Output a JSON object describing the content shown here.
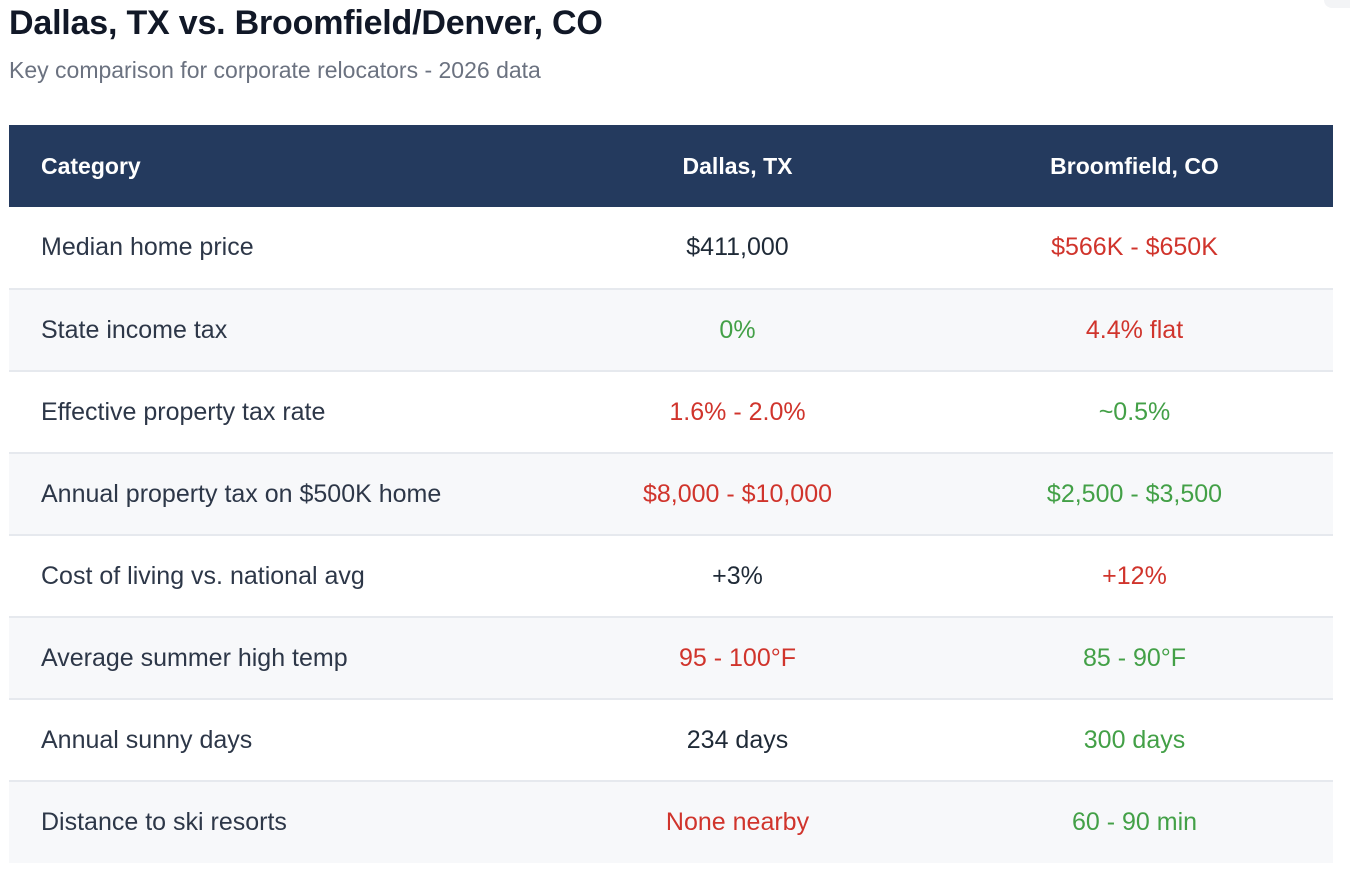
{
  "title": "Dallas, TX vs. Broomfield/Denver, CO",
  "subtitle": "Key comparison for corporate relocators - 2026 data",
  "colors": {
    "header_bg": "#243a5e",
    "favorable": "#43a047",
    "unfavorable": "#d0342c",
    "neutral": "#1f2a37"
  },
  "table": {
    "headers": [
      "Category",
      "Dallas, TX",
      "Broomfield, CO"
    ],
    "rows": [
      {
        "category": "Median home price",
        "dallas": "$411,000",
        "dallas_status": "neutral",
        "broomfield": "$566K - $650K",
        "broomfield_status": "bad"
      },
      {
        "category": "State income tax",
        "dallas": "0%",
        "dallas_status": "good",
        "broomfield": "4.4% flat",
        "broomfield_status": "bad"
      },
      {
        "category": "Effective property tax rate",
        "dallas": "1.6% - 2.0%",
        "dallas_status": "bad",
        "broomfield": "~0.5%",
        "broomfield_status": "good"
      },
      {
        "category": "Annual property tax on $500K home",
        "dallas": "$8,000 - $10,000",
        "dallas_status": "bad",
        "broomfield": "$2,500 - $3,500",
        "broomfield_status": "good"
      },
      {
        "category": "Cost of living vs. national avg",
        "dallas": "+3%",
        "dallas_status": "neutral",
        "broomfield": "+12%",
        "broomfield_status": "bad"
      },
      {
        "category": "Average summer high temp",
        "dallas": "95 - 100°F",
        "dallas_status": "bad",
        "broomfield": "85 - 90°F",
        "broomfield_status": "good"
      },
      {
        "category": "Annual sunny days",
        "dallas": "234 days",
        "dallas_status": "neutral",
        "broomfield": "300 days",
        "broomfield_status": "good"
      },
      {
        "category": "Distance to ski resorts",
        "dallas": "None nearby",
        "dallas_status": "bad",
        "broomfield": "60 - 90 min",
        "broomfield_status": "good"
      }
    ]
  }
}
